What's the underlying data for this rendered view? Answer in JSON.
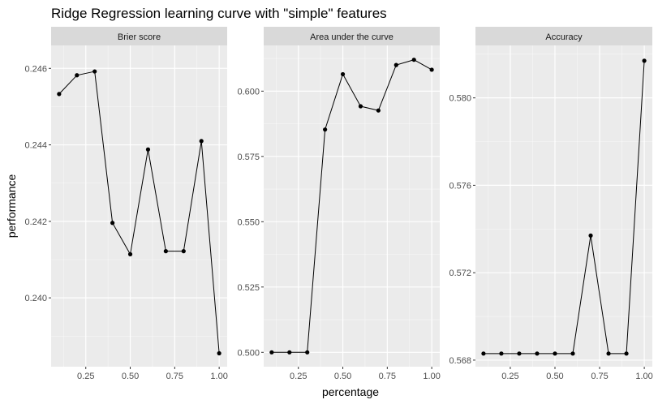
{
  "chart_data": {
    "type": "line",
    "title": "Ridge Regression learning curve with \"simple\" features",
    "xlabel": "percentage",
    "ylabel": "performance",
    "facet_layout": "1 row x 3 columns, free y scales",
    "grid": true,
    "legend": "none",
    "colors": {
      "panel_bg": "#EBEBEB",
      "strip_bg": "#D9D9D9",
      "grid_major": "#FFFFFF",
      "line": "#000000",
      "point": "#000000"
    },
    "x_ticks": [
      0.25,
      0.5,
      0.75,
      1.0
    ],
    "x_tick_labels": [
      "0.25",
      "0.50",
      "0.75",
      "1.00"
    ],
    "x": [
      0.1,
      0.2,
      0.3,
      0.4,
      0.5,
      0.6,
      0.7,
      0.8,
      0.9,
      1.0
    ],
    "xlim": [
      0.055,
      1.045
    ],
    "panels": [
      {
        "name": "Brier score",
        "values": [
          0.24533,
          0.24582,
          0.24592,
          0.24196,
          0.24114,
          0.24388,
          0.24122,
          0.24122,
          0.2441,
          0.23855
        ],
        "ylim": [
          0.2382,
          0.2466
        ],
        "y_ticks": [
          0.24,
          0.242,
          0.244,
          0.246
        ],
        "y_tick_labels": [
          "0.240",
          "0.242",
          "0.244",
          "0.246"
        ]
      },
      {
        "name": "Area under the curve",
        "values": [
          0.5,
          0.5,
          0.5,
          0.5853,
          0.6065,
          0.5942,
          0.5926,
          0.61,
          0.612,
          0.6082
        ],
        "ylim": [
          0.4945,
          0.6175
        ],
        "y_ticks": [
          0.5,
          0.525,
          0.55,
          0.575,
          0.6
        ],
        "y_tick_labels": [
          "0.500",
          "0.525",
          "0.550",
          "0.575",
          "0.600"
        ]
      },
      {
        "name": "Accuracy",
        "values": [
          0.5683,
          0.5683,
          0.5683,
          0.5683,
          0.5683,
          0.5683,
          0.5737,
          0.5683,
          0.5683,
          0.5817
        ],
        "ylim": [
          0.5677,
          0.5824
        ],
        "y_ticks": [
          0.568,
          0.572,
          0.576,
          0.58
        ],
        "y_tick_labels": [
          "0.568",
          "0.572",
          "0.576",
          "0.580"
        ]
      }
    ]
  }
}
